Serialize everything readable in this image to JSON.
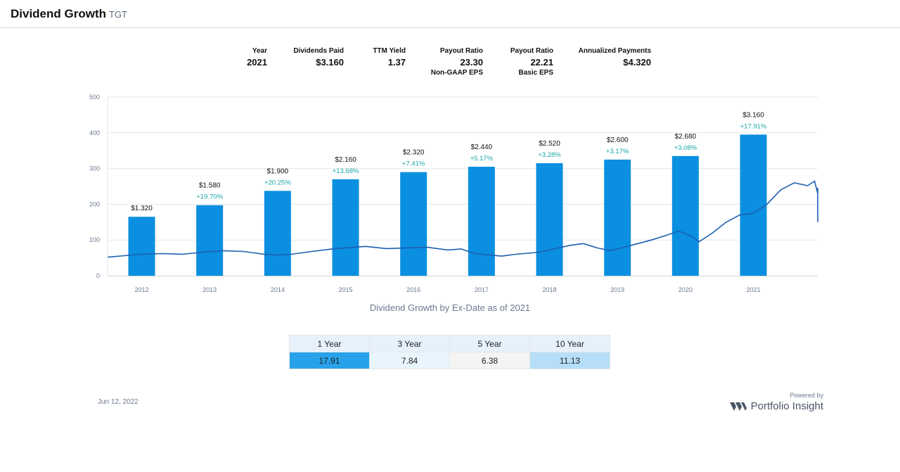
{
  "header": {
    "title": "Dividend Growth",
    "ticker": "TGT"
  },
  "stats": [
    {
      "label": "Year",
      "value": "2021",
      "sub": ""
    },
    {
      "label": "Dividends Paid",
      "value": "$3.160",
      "sub": ""
    },
    {
      "label": "TTM Yield",
      "value": "1.37",
      "sub": ""
    },
    {
      "label": "Payout Ratio",
      "value": "23.30",
      "sub": "Non-GAAP EPS"
    },
    {
      "label": "Payout Ratio",
      "value": "22.21",
      "sub": "Basic EPS"
    },
    {
      "label": "Annualized Payments",
      "value": "$4.320",
      "sub": ""
    }
  ],
  "chart_data": {
    "type": "bar",
    "title": "Dividend Growth by Ex-Date as of 2021",
    "categories": [
      "2012",
      "2013",
      "2014",
      "2015",
      "2016",
      "2017",
      "2018",
      "2019",
      "2020",
      "2021"
    ],
    "values": [
      1.32,
      1.58,
      1.9,
      2.16,
      2.32,
      2.44,
      2.52,
      2.6,
      2.68,
      3.16
    ],
    "value_labels": [
      "$1.320",
      "$1.580",
      "$1.900",
      "$2.160",
      "$2.320",
      "$2.440",
      "$2.520",
      "$2.600",
      "$2.680",
      "$3.160"
    ],
    "growth_labels": [
      "",
      "+19.70%",
      "+20.25%",
      "+13.68%",
      "+7.41%",
      "+5.17%",
      "+3.28%",
      "+3.17%",
      "+3.08%",
      "+17.91%"
    ],
    "yticks": [
      "0",
      "100",
      "200",
      "300",
      "400",
      "500"
    ],
    "ylim": [
      0,
      500
    ],
    "grid": true,
    "bar_color": "#0b8fe0",
    "growth_color": "#1aa6a6",
    "price_line": {
      "color": "#1d5fb0",
      "x": [
        2011.5,
        2011.8,
        2012.0,
        2012.3,
        2012.6,
        2012.9,
        2013.2,
        2013.5,
        2013.8,
        2014.0,
        2014.2,
        2014.5,
        2014.8,
        2015.0,
        2015.3,
        2015.6,
        2015.9,
        2016.2,
        2016.5,
        2016.7,
        2016.9,
        2017.1,
        2017.3,
        2017.5,
        2017.8,
        2018.0,
        2018.3,
        2018.5,
        2018.7,
        2018.9,
        2019.1,
        2019.3,
        2019.5,
        2019.7,
        2019.9,
        2020.1,
        2020.2,
        2020.4,
        2020.6,
        2020.8,
        2021.0,
        2021.2,
        2021.4,
        2021.6,
        2021.8,
        2021.9,
        2022.0,
        2022.2,
        2022.3,
        2022.35,
        2022.45
      ],
      "y": [
        52,
        57,
        60,
        62,
        60,
        66,
        70,
        68,
        60,
        58,
        60,
        68,
        75,
        78,
        82,
        76,
        78,
        80,
        72,
        75,
        62,
        58,
        55,
        60,
        65,
        72,
        85,
        90,
        78,
        70,
        80,
        90,
        100,
        112,
        125,
        110,
        95,
        120,
        150,
        170,
        175,
        200,
        240,
        260,
        252,
        265,
        230,
        210,
        245,
        200,
        150
      ]
    }
  },
  "growth_table": {
    "headers": [
      "1 Year",
      "3 Year",
      "5 Year",
      "10 Year"
    ],
    "values": [
      "17.91",
      "7.84",
      "6.38",
      "11.13"
    ],
    "cell_colors": [
      "#27a2ea",
      "#e9f5fd",
      "#f4f4f4",
      "#b6def8"
    ]
  },
  "footer": {
    "date": "Jun 12, 2022",
    "powered_by": "Powered by",
    "brand": "Portfolio Insight"
  }
}
